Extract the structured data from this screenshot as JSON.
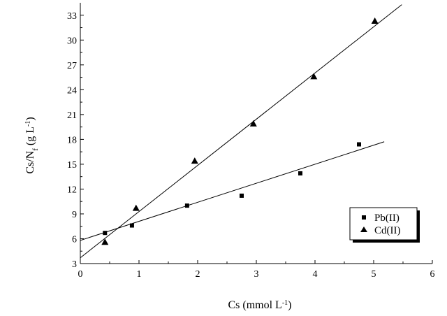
{
  "chart_data": {
    "type": "scatter",
    "title": "",
    "xlabel": {
      "main": "Cs (mmol L",
      "sup": "-1",
      "close": ")"
    },
    "ylabel": {
      "pre": "Cs/N",
      "sub": "f",
      "mid": " (g L",
      "sup": "-1",
      "close": ")"
    },
    "xlim": [
      0,
      6
    ],
    "ylim": [
      3,
      34.5
    ],
    "x_ticks": [
      0,
      1,
      2,
      3,
      4,
      5,
      6
    ],
    "y_ticks": [
      3,
      6,
      9,
      12,
      15,
      18,
      21,
      24,
      27,
      30,
      33
    ],
    "grid": false,
    "legend_position": "right",
    "series": [
      {
        "name": "Pb(II)",
        "marker": "square",
        "x": [
          0.42,
          0.88,
          1.82,
          2.75,
          3.75,
          4.75
        ],
        "y": [
          6.7,
          7.6,
          10.0,
          11.2,
          13.9,
          17.4
        ],
        "fit": {
          "slope": 2.3,
          "intercept": 5.8,
          "x_range": [
            0,
            5.18
          ]
        }
      },
      {
        "name": "Cd(II)",
        "marker": "triangle",
        "x": [
          0.42,
          0.95,
          1.95,
          2.95,
          3.98,
          5.02
        ],
        "y": [
          5.6,
          9.7,
          15.4,
          19.9,
          25.6,
          32.3
        ],
        "fit": {
          "slope": 5.58,
          "intercept": 3.7,
          "x_range": [
            0,
            5.48
          ]
        }
      }
    ]
  }
}
